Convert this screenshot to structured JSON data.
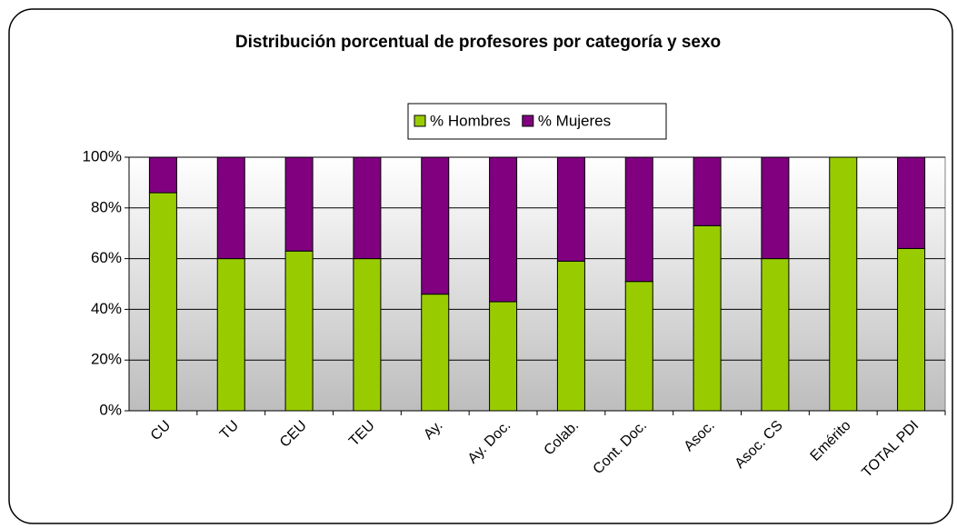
{
  "chart_data": {
    "type": "stacked_bar",
    "title": "Distribución porcentual de profesores por categoría y sexo",
    "categories": [
      "CU",
      "TU",
      "CEU",
      "TEU",
      "Ay.",
      "Ay. Doc.",
      "Colab.",
      "Cont. Doc.",
      "Asoc.",
      "Asoc. CS",
      "Emérito",
      "TOTAL PDI"
    ],
    "series": [
      {
        "name": "% Hombres",
        "color": "#99cc00",
        "values": [
          86,
          60,
          63,
          60,
          46,
          43,
          59,
          51,
          73,
          60,
          100,
          64
        ]
      },
      {
        "name": "% Mujeres",
        "color": "#800080",
        "values": [
          14,
          40,
          37,
          40,
          54,
          57,
          41,
          49,
          27,
          40,
          0,
          36
        ]
      }
    ],
    "ylim": [
      0,
      100
    ],
    "yticks": [
      {
        "value": 0,
        "label": "0%"
      },
      {
        "value": 20,
        "label": "20%"
      },
      {
        "value": 40,
        "label": "40%"
      },
      {
        "value": 60,
        "label": "60%"
      },
      {
        "value": 80,
        "label": "80%"
      },
      {
        "value": 100,
        "label": "100%"
      }
    ],
    "grid": true,
    "legend": "top"
  }
}
